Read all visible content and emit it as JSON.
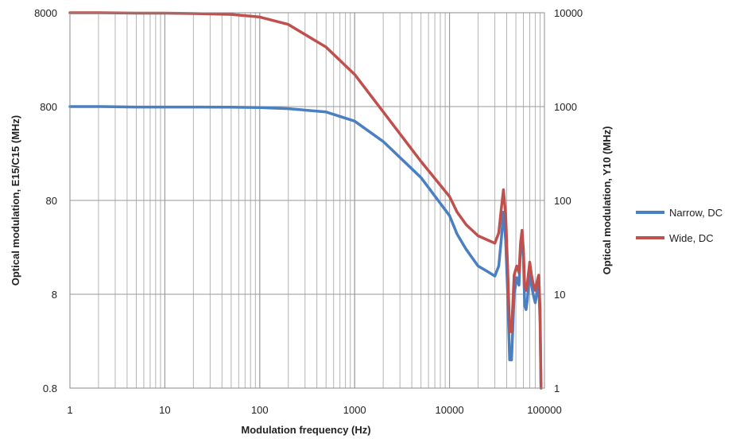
{
  "chart_data": {
    "type": "line",
    "xlabel": "Modulation frequency (Hz)",
    "ylabel_left": "Optical modulation, E15/C15 (MHz)",
    "ylabel_right": "Optical modulation, Y10 (MHz)",
    "x_scale": "log",
    "y_scale": "log",
    "xlim": [
      1,
      100000
    ],
    "ylim_left": [
      0.8,
      8000
    ],
    "ylim_right": [
      1,
      10000
    ],
    "x_ticks": [
      "1",
      "10",
      "100",
      "1000",
      "10000",
      "100000"
    ],
    "y_ticks_left": [
      "0.8",
      "8",
      "80",
      "800",
      "8000"
    ],
    "y_ticks_right": [
      "1",
      "10",
      "100",
      "1000",
      "10000"
    ],
    "grid": "on",
    "legend_position": "right",
    "legend": [
      {
        "name": "Narrow, DC",
        "color": "#4a7fc1"
      },
      {
        "name": "Wide, DC",
        "color": "#c0504d"
      }
    ],
    "series": [
      {
        "name": "Narrow, DC",
        "axis": "left",
        "color": "#4a7fc1",
        "x": [
          1,
          2,
          5,
          10,
          20,
          50,
          100,
          200,
          500,
          1000,
          2000,
          5000,
          10000,
          12000,
          15000,
          20000,
          25000,
          30000,
          33000,
          35000,
          37000,
          39000,
          41000,
          43000,
          45000,
          48000,
          51000,
          54000,
          56000,
          58000,
          60000,
          62000,
          64000,
          66000,
          68000,
          70000,
          73000,
          76000,
          80000,
          84000,
          87000,
          90000,
          92000
        ],
        "y": [
          800,
          800,
          790,
          790,
          790,
          788,
          780,
          760,
          700,
          560,
          340,
          140,
          55,
          35,
          24,
          16,
          14,
          12.5,
          16,
          30,
          60,
          30,
          8,
          1.6,
          1.6,
          8,
          12,
          10,
          25,
          35,
          20,
          6,
          5.5,
          7,
          10,
          14,
          10,
          8,
          6.5,
          8.5,
          10.5,
          4,
          0.6
        ]
      },
      {
        "name": "Wide, DC",
        "axis": "right",
        "color": "#c0504d",
        "x": [
          1,
          2,
          5,
          10,
          20,
          50,
          100,
          200,
          500,
          1000,
          2000,
          5000,
          10000,
          12000,
          15000,
          20000,
          25000,
          30000,
          33000,
          35000,
          37000,
          39000,
          41000,
          43000,
          45000,
          48000,
          51000,
          54000,
          56000,
          58000,
          60000,
          62000,
          64000,
          66000,
          68000,
          70000,
          73000,
          76000,
          80000,
          84000,
          87000,
          90000,
          92000
        ],
        "y": [
          10000,
          10000,
          9900,
          9900,
          9800,
          9600,
          9000,
          7500,
          4300,
          2200,
          880,
          260,
          110,
          75,
          55,
          42,
          38,
          35,
          45,
          80,
          130,
          70,
          18,
          4,
          4,
          16,
          20,
          17,
          35,
          48,
          30,
          12,
          11,
          13,
          17,
          22,
          16,
          13,
          11,
          14,
          16,
          7,
          0.9
        ]
      }
    ]
  }
}
